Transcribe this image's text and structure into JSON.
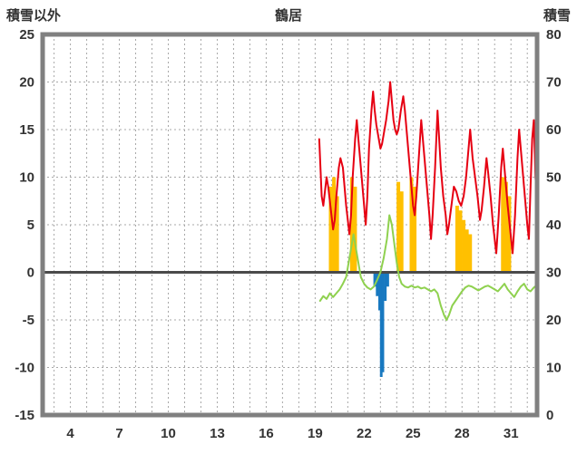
{
  "chart_data": {
    "type": "line",
    "title": "鶴居",
    "left_axis": {
      "label": "積雪以外",
      "min": -15,
      "max": 25,
      "tick_step": 5,
      "ticks": [
        25,
        20,
        15,
        10,
        5,
        0,
        -5,
        -10,
        -15
      ]
    },
    "right_axis": {
      "label": "積雪",
      "min": 0,
      "max": 80,
      "tick_step": 10,
      "ticks": [
        80,
        70,
        60,
        50,
        40,
        30,
        20,
        10,
        0
      ]
    },
    "x_axis": {
      "min": 2.3,
      "max": 32.6,
      "ticks": [
        4,
        7,
        10,
        13,
        16,
        19,
        22,
        25,
        28,
        31
      ],
      "grid_step": 1
    },
    "grid": true,
    "legend": "none",
    "zero_line": 0,
    "colors": {
      "grid": "#a8a8a8",
      "frame": "#808080",
      "zero": "#4a4a4a",
      "background": "#ffffff",
      "text": "#333333",
      "red": "#e60012",
      "green": "#8fd14f",
      "yellow": "#ffc000",
      "blue": "#1879c0"
    },
    "series": [
      {
        "name": "yellow-bars",
        "type": "bar",
        "axis": "left",
        "color": "#ffc000",
        "bar_width_days": 0.22,
        "points": [
          [
            19.95,
            9
          ],
          [
            20.15,
            10
          ],
          [
            20.35,
            8
          ],
          [
            21.25,
            10
          ],
          [
            21.45,
            9
          ],
          [
            24.1,
            9.5
          ],
          [
            24.3,
            8.5
          ],
          [
            24.9,
            10
          ],
          [
            25.1,
            9
          ],
          [
            27.7,
            7
          ],
          [
            27.9,
            6.5
          ],
          [
            28.1,
            5.5
          ],
          [
            28.3,
            4.5
          ],
          [
            28.5,
            4
          ],
          [
            30.5,
            10
          ],
          [
            30.7,
            9.5
          ],
          [
            30.9,
            8
          ]
        ]
      },
      {
        "name": "blue-bars",
        "type": "bar",
        "axis": "left",
        "color": "#1879c0",
        "bar_width_days": 0.16,
        "points": [
          [
            22.65,
            -1.5
          ],
          [
            22.8,
            -2.5
          ],
          [
            22.95,
            -4
          ],
          [
            23.05,
            -11
          ],
          [
            23.15,
            -10.5
          ],
          [
            23.3,
            -3
          ],
          [
            23.45,
            -1.5
          ]
        ]
      },
      {
        "name": "green-line",
        "type": "line",
        "axis": "left",
        "color": "#8fd14f",
        "points": [
          [
            19.3,
            -3
          ],
          [
            19.5,
            -2.5
          ],
          [
            19.7,
            -2.8
          ],
          [
            19.9,
            -2.2
          ],
          [
            20.1,
            -2.6
          ],
          [
            20.3,
            -2.2
          ],
          [
            20.5,
            -1.8
          ],
          [
            20.7,
            -1.2
          ],
          [
            20.9,
            -0.5
          ],
          [
            21.05,
            1
          ],
          [
            21.2,
            2.5
          ],
          [
            21.35,
            4
          ],
          [
            21.5,
            2.5
          ],
          [
            21.65,
            1
          ],
          [
            21.8,
            -0.5
          ],
          [
            22.0,
            -1.2
          ],
          [
            22.2,
            -1.6
          ],
          [
            22.4,
            -1.8
          ],
          [
            22.6,
            -1.5
          ],
          [
            22.8,
            -0.8
          ],
          [
            23.0,
            0
          ],
          [
            23.2,
            1.5
          ],
          [
            23.4,
            3.5
          ],
          [
            23.55,
            6
          ],
          [
            23.7,
            5
          ],
          [
            23.85,
            3
          ],
          [
            24.0,
            1
          ],
          [
            24.15,
            -0.5
          ],
          [
            24.3,
            -1.2
          ],
          [
            24.5,
            -1.5
          ],
          [
            24.7,
            -1.6
          ],
          [
            24.9,
            -1.4
          ],
          [
            25.1,
            -1.6
          ],
          [
            25.3,
            -1.5
          ],
          [
            25.5,
            -1.7
          ],
          [
            25.7,
            -1.6
          ],
          [
            25.9,
            -1.8
          ],
          [
            26.1,
            -2
          ],
          [
            26.3,
            -1.8
          ],
          [
            26.5,
            -2.2
          ],
          [
            26.7,
            -3.5
          ],
          [
            26.9,
            -4.5
          ],
          [
            27.05,
            -5
          ],
          [
            27.2,
            -4.5
          ],
          [
            27.4,
            -3.5
          ],
          [
            27.6,
            -3
          ],
          [
            27.8,
            -2.5
          ],
          [
            28.0,
            -2
          ],
          [
            28.2,
            -1.6
          ],
          [
            28.4,
            -1.4
          ],
          [
            28.6,
            -1.5
          ],
          [
            28.8,
            -1.7
          ],
          [
            29.0,
            -1.9
          ],
          [
            29.2,
            -1.7
          ],
          [
            29.4,
            -1.5
          ],
          [
            29.6,
            -1.4
          ],
          [
            29.8,
            -1.6
          ],
          [
            30.0,
            -1.8
          ],
          [
            30.2,
            -2
          ],
          [
            30.4,
            -1.6
          ],
          [
            30.6,
            -1.2
          ],
          [
            30.8,
            -1.8
          ],
          [
            31.0,
            -2.2
          ],
          [
            31.2,
            -2.6
          ],
          [
            31.4,
            -2
          ],
          [
            31.6,
            -1.5
          ],
          [
            31.8,
            -1.2
          ],
          [
            32.0,
            -1.8
          ],
          [
            32.2,
            -2
          ],
          [
            32.4,
            -1.6
          ],
          [
            32.55,
            -1.4
          ]
        ]
      },
      {
        "name": "red-line",
        "type": "line",
        "axis": "left",
        "color": "#e60012",
        "points": [
          [
            19.25,
            14
          ],
          [
            19.3,
            12
          ],
          [
            19.4,
            8
          ],
          [
            19.5,
            7
          ],
          [
            19.6,
            8.5
          ],
          [
            19.7,
            10
          ],
          [
            19.8,
            9
          ],
          [
            19.9,
            7.5
          ],
          [
            20.0,
            6
          ],
          [
            20.1,
            4.5
          ],
          [
            20.2,
            5.5
          ],
          [
            20.3,
            8
          ],
          [
            20.45,
            11
          ],
          [
            20.55,
            12
          ],
          [
            20.7,
            11
          ],
          [
            20.8,
            9
          ],
          [
            20.9,
            7
          ],
          [
            21.0,
            5.5
          ],
          [
            21.1,
            4
          ],
          [
            21.2,
            6
          ],
          [
            21.3,
            10
          ],
          [
            21.45,
            14
          ],
          [
            21.55,
            16
          ],
          [
            21.7,
            13
          ],
          [
            21.8,
            11
          ],
          [
            21.9,
            9
          ],
          [
            22.0,
            7
          ],
          [
            22.1,
            5
          ],
          [
            22.2,
            8
          ],
          [
            22.3,
            13
          ],
          [
            22.45,
            17
          ],
          [
            22.55,
            19
          ],
          [
            22.65,
            17
          ],
          [
            22.75,
            15.5
          ],
          [
            22.85,
            14.5
          ],
          [
            23.0,
            13
          ],
          [
            23.1,
            13.5
          ],
          [
            23.2,
            14.5
          ],
          [
            23.35,
            16
          ],
          [
            23.5,
            18
          ],
          [
            23.6,
            20
          ],
          [
            23.7,
            18
          ],
          [
            23.8,
            16
          ],
          [
            23.9,
            15
          ],
          [
            24.0,
            14.5
          ],
          [
            24.1,
            15
          ],
          [
            24.25,
            17
          ],
          [
            24.4,
            18.5
          ],
          [
            24.5,
            17
          ],
          [
            24.6,
            15
          ],
          [
            24.7,
            13
          ],
          [
            24.85,
            10
          ],
          [
            25.0,
            7
          ],
          [
            25.1,
            6
          ],
          [
            25.2,
            8
          ],
          [
            25.35,
            12
          ],
          [
            25.5,
            16
          ],
          [
            25.6,
            14
          ],
          [
            25.7,
            12
          ],
          [
            25.85,
            9
          ],
          [
            26.0,
            6
          ],
          [
            26.1,
            3.5
          ],
          [
            26.2,
            6
          ],
          [
            26.35,
            11
          ],
          [
            26.5,
            17
          ],
          [
            26.6,
            14
          ],
          [
            26.7,
            11
          ],
          [
            26.85,
            8
          ],
          [
            27.0,
            6
          ],
          [
            27.1,
            4
          ],
          [
            27.2,
            5
          ],
          [
            27.35,
            7
          ],
          [
            27.5,
            9
          ],
          [
            27.65,
            8.5
          ],
          [
            27.8,
            7.5
          ],
          [
            27.95,
            7
          ],
          [
            28.1,
            8
          ],
          [
            28.25,
            10
          ],
          [
            28.4,
            13
          ],
          [
            28.5,
            15
          ],
          [
            28.65,
            12
          ],
          [
            28.8,
            10
          ],
          [
            28.95,
            8
          ],
          [
            29.1,
            5.5
          ],
          [
            29.2,
            6.5
          ],
          [
            29.35,
            9
          ],
          [
            29.5,
            12
          ],
          [
            29.6,
            10.5
          ],
          [
            29.75,
            8
          ],
          [
            29.9,
            5
          ],
          [
            30.0,
            3.5
          ],
          [
            30.1,
            2
          ],
          [
            30.25,
            6
          ],
          [
            30.4,
            11
          ],
          [
            30.5,
            13
          ],
          [
            30.65,
            10
          ],
          [
            30.8,
            7
          ],
          [
            30.95,
            4.5
          ],
          [
            31.1,
            2
          ],
          [
            31.25,
            6
          ],
          [
            31.4,
            12
          ],
          [
            31.5,
            15
          ],
          [
            31.6,
            13
          ],
          [
            31.75,
            10
          ],
          [
            31.9,
            7
          ],
          [
            32.0,
            5
          ],
          [
            32.1,
            3.5
          ],
          [
            32.2,
            9
          ],
          [
            32.3,
            14
          ],
          [
            32.4,
            16
          ],
          [
            32.5,
            10
          ],
          [
            32.55,
            9
          ]
        ]
      }
    ]
  }
}
